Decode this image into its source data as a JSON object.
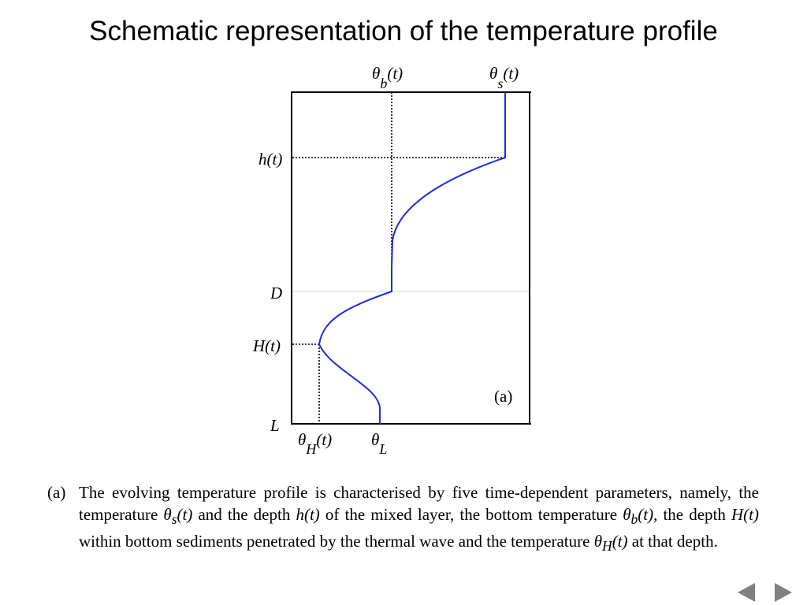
{
  "title": "Schematic representation of the temperature profile",
  "diagram": {
    "top_labels": {
      "theta_b": {
        "sym": "θ",
        "sub": "b",
        "arg": "(t)"
      },
      "theta_s": {
        "sym": "θ",
        "sub": "s",
        "arg": "(t)"
      }
    },
    "bottom_labels": {
      "theta_H": {
        "sym": "θ",
        "sub": "H",
        "arg": "(t)"
      },
      "theta_L": {
        "sym": "θ",
        "sub": "L",
        "arg": ""
      }
    },
    "depth_labels": {
      "h": "h(t)",
      "D": "D",
      "H": "H(t)",
      "L": "L"
    },
    "panel_label": "(a)",
    "colors": {
      "profile": "#1f2ed6",
      "frame": "#000000",
      "guide": "#000000"
    }
  },
  "caption": {
    "tag": "(a)",
    "text1": "The evolving temperature profile is characterised by five time-dependent parameters, namely, the temperature ",
    "theta_s": {
      "sym": "θ",
      "sub": "s",
      "arg": "(t)"
    },
    "text2": " and the depth ",
    "h": "h(t)",
    "text3": " of the mixed layer, the bottom temperature ",
    "theta_b": {
      "sym": "θ",
      "sub": "b",
      "arg": "(t)"
    },
    "text4": ", the depth ",
    "H": "H(t)",
    "text5": " within bottom sediments penetrated by the thermal wave and the temperature ",
    "theta_H": {
      "sym": "θ",
      "sub": "H",
      "arg": "(t)"
    },
    "text6": " at that depth."
  },
  "nav": {
    "prev_icon": "triangle-left-icon",
    "next_icon": "triangle-right-icon"
  }
}
